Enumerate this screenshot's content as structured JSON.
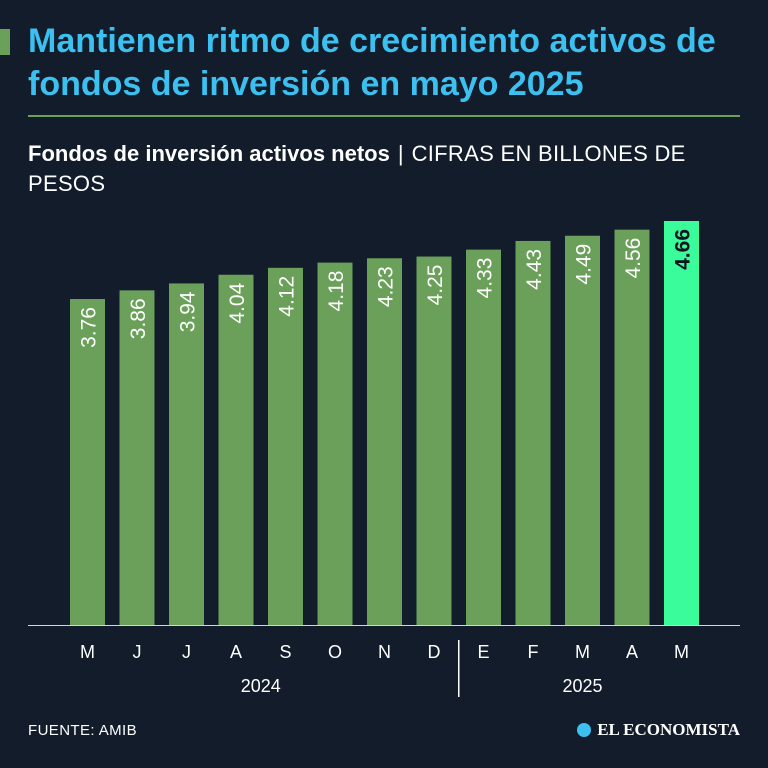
{
  "header": {
    "title": "Mantienen ritmo de crecimiento activos de fondos de inversión en mayo 2025",
    "subtitle_strong": "Fondos de inversión activos netos",
    "separator": "|",
    "subtitle_units": "CIFRAS EN BILLONES DE PESOS"
  },
  "chart_data": {
    "type": "bar",
    "title": "Fondos de inversión activos netos",
    "ylabel": "Billones de pesos",
    "categories": [
      "M",
      "J",
      "J",
      "A",
      "S",
      "O",
      "N",
      "D",
      "E",
      "F",
      "M",
      "A",
      "M"
    ],
    "values": [
      3.76,
      3.86,
      3.94,
      4.04,
      4.12,
      4.18,
      4.23,
      4.25,
      4.33,
      4.43,
      4.49,
      4.56,
      4.66
    ],
    "value_labels": [
      "3.76",
      "3.86",
      "3.94",
      "4.04",
      "4.12",
      "4.18",
      "4.23",
      "4.25",
      "4.33",
      "4.43",
      "4.49",
      "4.56",
      "4.66"
    ],
    "groups": [
      {
        "label": "2024",
        "start": 0,
        "end": 7
      },
      {
        "label": "2025",
        "start": 8,
        "end": 12
      }
    ],
    "highlight_index": 12,
    "ylim": [
      0,
      4.66
    ]
  },
  "colors": {
    "background": "#121c2b",
    "bar": "#6aa05a",
    "highlight": "#3afc9a",
    "title": "#3cc0f0",
    "text": "#ffffff"
  },
  "footer": {
    "source": "FUENTE: AMIB",
    "logo": "EL ECONOMISTA"
  }
}
